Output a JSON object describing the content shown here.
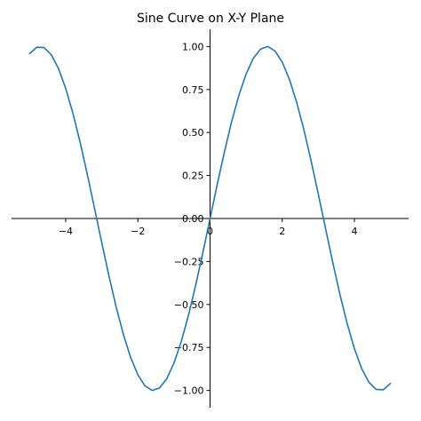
{
  "chart_data": {
    "type": "line",
    "title": "Sine Curve on X-Y Plane",
    "xlabel": "",
    "ylabel": "",
    "xlim": [
      -5.5,
      5.5
    ],
    "ylim": [
      -1.1,
      1.1
    ],
    "grid": false,
    "spines": "centered",
    "x_ticks": [
      -4,
      -2,
      0,
      2,
      4
    ],
    "x_tick_labels": [
      "−4",
      "−2",
      "0",
      "2",
      "4"
    ],
    "y_ticks": [
      1.0,
      0.75,
      0.5,
      0.25,
      0.0,
      -0.25,
      -0.5,
      -0.75,
      -1.0
    ],
    "y_tick_labels": [
      "1.00",
      "0.75",
      "0.50",
      "0.25",
      "0.00",
      "−0.25",
      "−0.50",
      "−0.75",
      "−1.00"
    ],
    "series": [
      {
        "color": "#1f77b4",
        "x": [
          -5.0,
          -4.8,
          -4.6,
          -4.4,
          -4.2,
          -4.0,
          -3.8,
          -3.6,
          -3.4,
          -3.2,
          -3.0,
          -2.8,
          -2.6,
          -2.4,
          -2.2,
          -2.0,
          -1.8,
          -1.6,
          -1.4,
          -1.2,
          -1.0,
          -0.8,
          -0.6,
          -0.4,
          -0.2,
          0.0,
          0.2,
          0.4,
          0.6,
          0.8,
          1.0,
          1.2,
          1.4,
          1.6,
          1.8,
          2.0,
          2.2,
          2.4,
          2.6,
          2.8,
          3.0,
          3.2,
          3.4,
          3.6,
          3.8,
          4.0,
          4.2,
          4.4,
          4.6,
          4.8,
          5.0
        ],
        "y": [
          0.959,
          0.996,
          0.994,
          0.952,
          0.872,
          0.757,
          0.612,
          0.443,
          0.256,
          0.058,
          -0.141,
          -0.335,
          -0.516,
          -0.675,
          -0.808,
          -0.909,
          -0.974,
          -1.0,
          -0.985,
          -0.932,
          -0.841,
          -0.717,
          -0.565,
          -0.389,
          -0.199,
          0.0,
          0.199,
          0.389,
          0.565,
          0.717,
          0.841,
          0.932,
          0.985,
          1.0,
          0.974,
          0.909,
          0.808,
          0.675,
          0.516,
          0.335,
          0.141,
          -0.058,
          -0.256,
          -0.443,
          -0.612,
          -0.757,
          -0.872,
          -0.952,
          -0.994,
          -0.996,
          -0.959
        ]
      }
    ]
  }
}
